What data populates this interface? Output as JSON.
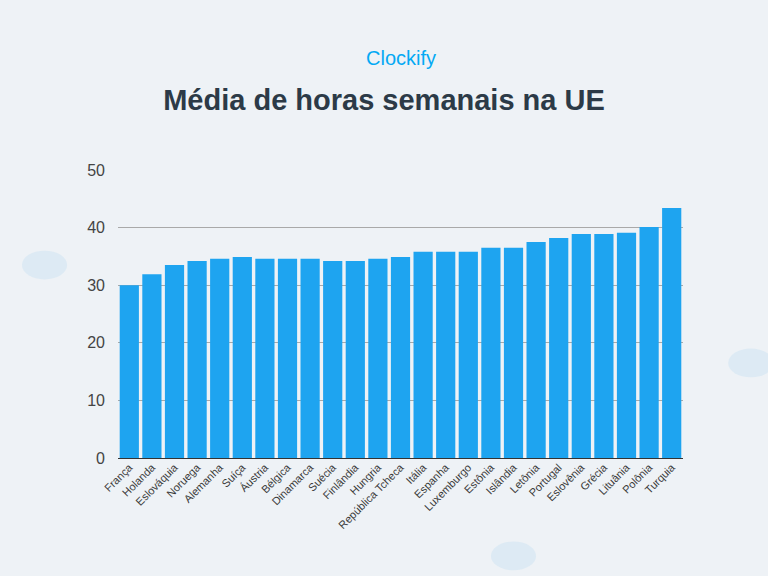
{
  "chart_data": {
    "type": "bar",
    "title": "Média de horas semanais na UE",
    "annotations": [
      "Clockify"
    ],
    "categories": [
      "França",
      "Holanda",
      "Eslováquia",
      "Noruega",
      "Alemanha",
      "Suíça",
      "Áustria",
      "Bélgica",
      "Dinamarca",
      "Suécia",
      "Finlândia",
      "Hungria",
      "República Tcheca",
      "Itália",
      "Espanha",
      "Luxemburgo",
      "Estônia",
      "Islândia",
      "Letônia",
      "Portugal",
      "Eslovênia",
      "Grécia",
      "Lituânia",
      "Polônia",
      "Turquia"
    ],
    "values": [
      30.0,
      31.9,
      33.5,
      34.2,
      34.6,
      34.9,
      34.6,
      34.6,
      34.6,
      34.2,
      34.2,
      34.6,
      34.9,
      35.8,
      35.8,
      35.8,
      36.5,
      36.5,
      37.5,
      38.2,
      38.9,
      38.9,
      39.1,
      40.1,
      43.4
    ],
    "color": "#1ea4f0",
    "ylim": [
      0,
      50
    ],
    "yticks": [
      0,
      10,
      20,
      30,
      40,
      50
    ],
    "grid": true
  }
}
